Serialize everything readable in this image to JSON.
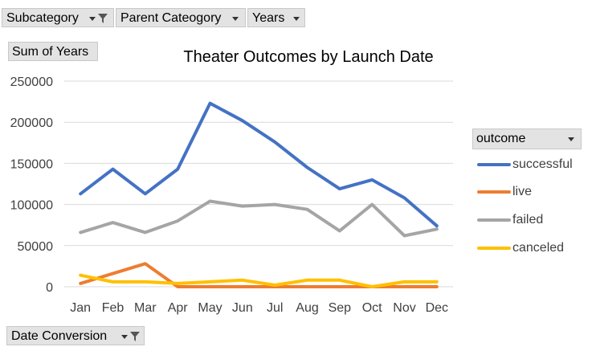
{
  "filters": {
    "subcategory": "Subcategory",
    "parent_category": "Parent Cateogory",
    "years": "Years",
    "sum_of_years": "Sum of Years",
    "date_conversion": "Date Conversion"
  },
  "legend": {
    "header": "outcome"
  },
  "colors": {
    "successful": "#4472c4",
    "live": "#ed7d31",
    "failed": "#a5a5a5",
    "canceled": "#ffc000",
    "grid": "#d9d9d9"
  },
  "chart_data": {
    "type": "line",
    "title": "Theater Outcomes by Launch Date",
    "xlabel": "",
    "ylabel": "",
    "categories": [
      "Jan",
      "Feb",
      "Mar",
      "Apr",
      "May",
      "Jun",
      "Jul",
      "Aug",
      "Sep",
      "Oct",
      "Nov",
      "Dec"
    ],
    "ylim": [
      0,
      250000
    ],
    "yticks": [
      "0",
      "50000",
      "100000",
      "150000",
      "200000",
      "250000"
    ],
    "grid": true,
    "legend_position": "right",
    "series": [
      {
        "name": "successful",
        "values": [
          113000,
          143000,
          113000,
          143000,
          223000,
          202000,
          176000,
          145000,
          119000,
          130000,
          108000,
          74000
        ]
      },
      {
        "name": "live",
        "values": [
          4000,
          16000,
          28000,
          0,
          0,
          0,
          0,
          0,
          0,
          0,
          0,
          0
        ]
      },
      {
        "name": "failed",
        "values": [
          66000,
          78000,
          66000,
          80000,
          104000,
          98000,
          100000,
          94000,
          68000,
          100000,
          62000,
          70000
        ]
      },
      {
        "name": "canceled",
        "values": [
          14000,
          6000,
          6000,
          4000,
          6000,
          8000,
          2000,
          8000,
          8000,
          0,
          6000,
          6000
        ]
      }
    ]
  }
}
